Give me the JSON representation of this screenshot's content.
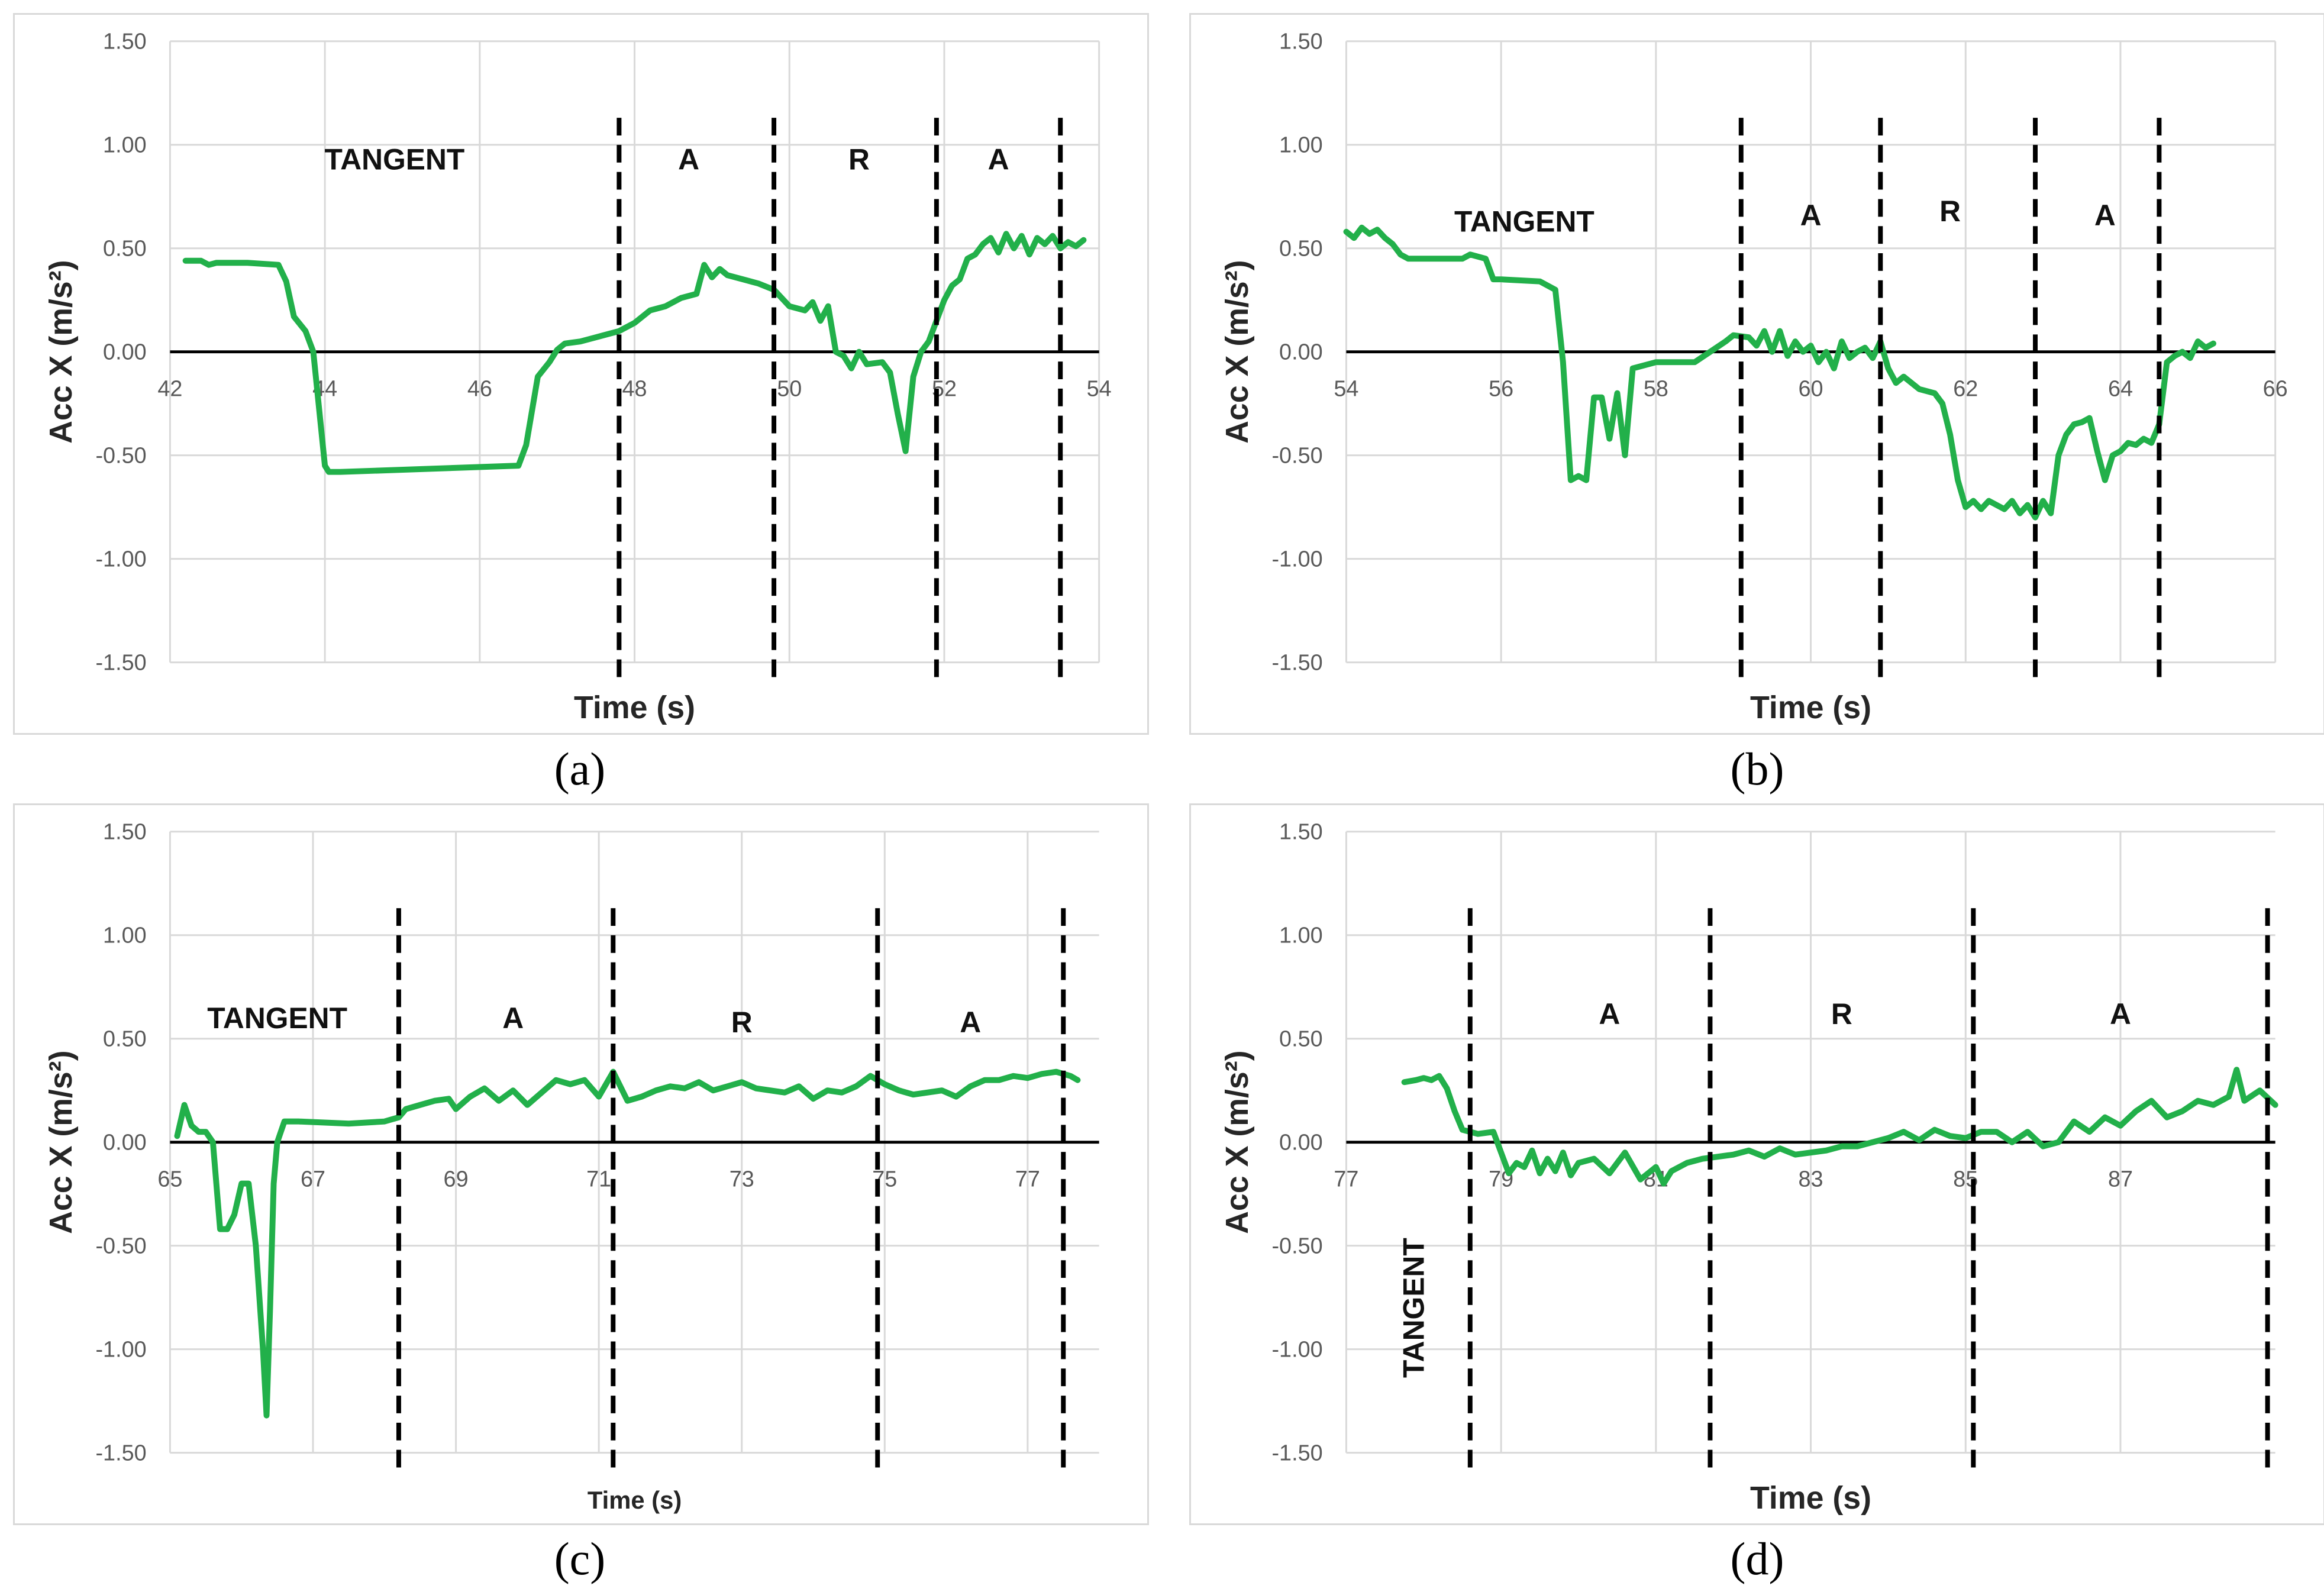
{
  "figure": {
    "captions": [
      "(a)",
      "(b)",
      "(c)",
      "(d)"
    ]
  },
  "chart_data": [
    {
      "id": "a",
      "type": "line",
      "caption": "(a)",
      "xlabel": "Time (s)",
      "ylabel": "Acc X (m/s²)",
      "xlim": [
        42,
        54
      ],
      "ylim": [
        -1.5,
        1.5
      ],
      "xticks": [
        42,
        44,
        46,
        48,
        50,
        52,
        54
      ],
      "yticks": [
        -1.5,
        -1.0,
        -0.5,
        0.0,
        0.5,
        1.0,
        1.5
      ],
      "grid": true,
      "line_color": "#22b04a",
      "series": [
        {
          "name": "Acc X",
          "x": [
            42.2,
            42.4,
            42.5,
            42.6,
            43.0,
            43.4,
            43.5,
            43.6,
            43.75,
            43.85,
            44.0,
            44.05,
            44.2,
            46.5,
            46.6,
            46.75,
            46.9,
            47.0,
            47.1,
            47.3,
            47.5,
            47.8,
            48.0,
            48.2,
            48.4,
            48.6,
            48.8,
            48.9,
            49.0,
            49.1,
            49.2,
            49.4,
            49.6,
            49.8,
            50.0,
            50.2,
            50.3,
            50.4,
            50.5,
            50.6,
            50.7,
            50.8,
            50.9,
            51.0,
            51.2,
            51.3,
            51.4,
            51.5,
            51.6,
            51.7,
            51.8,
            51.9,
            52.0,
            52.1,
            52.2,
            52.3,
            52.4,
            52.5,
            52.6,
            52.7,
            52.8,
            52.9,
            53.0,
            53.1,
            53.2,
            53.3,
            53.4,
            53.5,
            53.6,
            53.7,
            53.8
          ],
          "y": [
            0.44,
            0.44,
            0.42,
            0.43,
            0.43,
            0.42,
            0.34,
            0.17,
            0.1,
            0.0,
            -0.55,
            -0.58,
            -0.58,
            -0.55,
            -0.45,
            -0.12,
            -0.05,
            0.01,
            0.04,
            0.05,
            0.07,
            0.1,
            0.14,
            0.2,
            0.22,
            0.26,
            0.28,
            0.42,
            0.36,
            0.4,
            0.37,
            0.35,
            0.33,
            0.3,
            0.22,
            0.2,
            0.24,
            0.15,
            0.22,
            0.0,
            -0.02,
            -0.08,
            0.0,
            -0.06,
            -0.05,
            -0.1,
            -0.3,
            -0.48,
            -0.12,
            0.0,
            0.05,
            0.15,
            0.25,
            0.32,
            0.35,
            0.45,
            0.47,
            0.52,
            0.55,
            0.48,
            0.57,
            0.5,
            0.56,
            0.47,
            0.55,
            0.52,
            0.56,
            0.5,
            0.53,
            0.51,
            0.54
          ]
        }
      ],
      "dividers": [
        47.8,
        49.8,
        51.9,
        53.5
      ],
      "annotations": [
        {
          "text": "TANGENT",
          "x": 44.9,
          "y": 0.88
        },
        {
          "text": "A",
          "x": 48.7,
          "y": 0.88
        },
        {
          "text": "R",
          "x": 50.9,
          "y": 0.88
        },
        {
          "text": "A",
          "x": 52.7,
          "y": 0.88
        }
      ]
    },
    {
      "id": "b",
      "type": "line",
      "caption": "(b)",
      "xlabel": "Time (s)",
      "ylabel": "Acc X (m/s²)",
      "xlim": [
        54,
        66
      ],
      "ylim": [
        -1.5,
        1.5
      ],
      "xticks": [
        54,
        56,
        58,
        60,
        62,
        64,
        66
      ],
      "yticks": [
        -1.5,
        -1.0,
        -0.5,
        0.0,
        0.5,
        1.0,
        1.5
      ],
      "grid": true,
      "line_color": "#22b04a",
      "series": [
        {
          "name": "Acc X",
          "x": [
            54.0,
            54.1,
            54.2,
            54.3,
            54.4,
            54.5,
            54.6,
            54.7,
            54.8,
            54.9,
            55.0,
            55.5,
            55.6,
            55.8,
            55.9,
            56.0,
            56.5,
            56.7,
            56.8,
            56.9,
            57.0,
            57.1,
            57.2,
            57.3,
            57.4,
            57.5,
            57.6,
            57.7,
            58.0,
            58.5,
            58.7,
            58.9,
            59.0,
            59.2,
            59.3,
            59.4,
            59.5,
            59.6,
            59.7,
            59.8,
            59.9,
            60.0,
            60.1,
            60.2,
            60.3,
            60.4,
            60.5,
            60.6,
            60.7,
            60.8,
            60.9,
            61.0,
            61.1,
            61.2,
            61.4,
            61.6,
            61.7,
            61.8,
            61.9,
            62.0,
            62.1,
            62.2,
            62.3,
            62.4,
            62.5,
            62.6,
            62.7,
            62.8,
            62.9,
            63.0,
            63.1,
            63.2,
            63.3,
            63.4,
            63.5,
            63.6,
            63.7,
            63.8,
            63.9,
            64.0,
            64.1,
            64.2,
            64.3,
            64.4,
            64.5,
            64.6,
            64.7,
            64.8,
            64.9,
            65.0,
            65.1,
            65.2
          ],
          "y": [
            0.58,
            0.55,
            0.6,
            0.57,
            0.59,
            0.55,
            0.52,
            0.47,
            0.45,
            0.45,
            0.45,
            0.45,
            0.47,
            0.45,
            0.35,
            0.35,
            0.34,
            0.3,
            -0.05,
            -0.62,
            -0.6,
            -0.62,
            -0.22,
            -0.22,
            -0.42,
            -0.2,
            -0.5,
            -0.08,
            -0.05,
            -0.05,
            0.0,
            0.05,
            0.08,
            0.07,
            0.03,
            0.1,
            0.0,
            0.1,
            -0.02,
            0.05,
            0.0,
            0.03,
            -0.05,
            0.0,
            -0.08,
            0.05,
            -0.03,
            0.0,
            0.02,
            -0.03,
            0.05,
            -0.08,
            -0.15,
            -0.12,
            -0.18,
            -0.2,
            -0.25,
            -0.4,
            -0.62,
            -0.75,
            -0.72,
            -0.76,
            -0.72,
            -0.74,
            -0.76,
            -0.72,
            -0.78,
            -0.74,
            -0.8,
            -0.72,
            -0.78,
            -0.5,
            -0.4,
            -0.35,
            -0.34,
            -0.32,
            -0.48,
            -0.62,
            -0.5,
            -0.48,
            -0.44,
            -0.45,
            -0.42,
            -0.44,
            -0.35,
            -0.05,
            -0.02,
            0.0,
            -0.03,
            0.05,
            0.02,
            0.04
          ]
        }
      ],
      "dividers": [
        59.1,
        60.9,
        62.9,
        64.5
      ],
      "annotations": [
        {
          "text": "TANGENT",
          "x": 56.3,
          "y": 0.58
        },
        {
          "text": "A",
          "x": 60.0,
          "y": 0.61
        },
        {
          "text": "R",
          "x": 61.8,
          "y": 0.63
        },
        {
          "text": "A",
          "x": 63.8,
          "y": 0.61
        }
      ]
    },
    {
      "id": "c",
      "type": "line",
      "caption": "(c)",
      "xlabel": "Time (s)",
      "ylabel": "Acc X (m/s²)",
      "xlim": [
        65,
        78
      ],
      "ylim": [
        -1.5,
        1.5
      ],
      "xticks": [
        65,
        67,
        69,
        71,
        73,
        75,
        77
      ],
      "yticks": [
        -1.5,
        -1.0,
        -0.5,
        0.0,
        0.5,
        1.0,
        1.5
      ],
      "grid": true,
      "line_color": "#22b04a",
      "series": [
        {
          "name": "Acc X",
          "x": [
            65.1,
            65.2,
            65.3,
            65.4,
            65.5,
            65.6,
            65.7,
            65.8,
            65.9,
            66.0,
            66.1,
            66.2,
            66.3,
            66.35,
            66.4,
            66.45,
            66.5,
            66.6,
            66.8,
            67.5,
            68.0,
            68.2,
            68.3,
            68.5,
            68.7,
            68.9,
            69.0,
            69.2,
            69.4,
            69.6,
            69.8,
            70.0,
            70.2,
            70.4,
            70.6,
            70.8,
            71.0,
            71.2,
            71.4,
            71.6,
            71.8,
            72.0,
            72.2,
            72.4,
            72.6,
            72.8,
            73.0,
            73.2,
            73.4,
            73.6,
            73.8,
            74.0,
            74.2,
            74.4,
            74.6,
            74.8,
            75.0,
            75.2,
            75.4,
            75.6,
            75.8,
            76.0,
            76.2,
            76.4,
            76.6,
            76.8,
            77.0,
            77.2,
            77.4,
            77.6,
            77.7
          ],
          "y": [
            0.03,
            0.18,
            0.08,
            0.05,
            0.05,
            0.0,
            -0.42,
            -0.42,
            -0.35,
            -0.2,
            -0.2,
            -0.5,
            -1.0,
            -1.32,
            -0.8,
            -0.2,
            0.0,
            0.1,
            0.1,
            0.09,
            0.1,
            0.12,
            0.16,
            0.18,
            0.2,
            0.21,
            0.16,
            0.22,
            0.26,
            0.2,
            0.25,
            0.18,
            0.24,
            0.3,
            0.28,
            0.3,
            0.22,
            0.34,
            0.2,
            0.22,
            0.25,
            0.27,
            0.26,
            0.29,
            0.25,
            0.27,
            0.29,
            0.26,
            0.25,
            0.24,
            0.27,
            0.21,
            0.25,
            0.24,
            0.27,
            0.32,
            0.28,
            0.25,
            0.23,
            0.24,
            0.25,
            0.22,
            0.27,
            0.3,
            0.3,
            0.32,
            0.31,
            0.33,
            0.34,
            0.32,
            0.3
          ]
        }
      ],
      "dividers": [
        68.2,
        71.2,
        74.9,
        77.5
      ],
      "annotations": [
        {
          "text": "TANGENT",
          "x": 66.5,
          "y": 0.55
        },
        {
          "text": "A",
          "x": 69.8,
          "y": 0.55
        },
        {
          "text": "R",
          "x": 73.0,
          "y": 0.53
        },
        {
          "text": "A",
          "x": 76.2,
          "y": 0.53
        }
      ]
    },
    {
      "id": "d",
      "type": "line",
      "caption": "(d)",
      "xlabel": "Time (s)",
      "ylabel": "Acc X (m/s²)",
      "xlim": [
        77,
        89
      ],
      "ylim": [
        -1.5,
        1.5
      ],
      "xticks": [
        77,
        79,
        81,
        83,
        85,
        87
      ],
      "yticks": [
        -1.5,
        -1.0,
        -0.5,
        0.0,
        0.5,
        1.0,
        1.5
      ],
      "grid": true,
      "line_color": "#22b04a",
      "series": [
        {
          "name": "Acc X",
          "x": [
            77.75,
            77.9,
            78.0,
            78.1,
            78.2,
            78.3,
            78.4,
            78.5,
            78.7,
            78.9,
            79.0,
            79.1,
            79.2,
            79.3,
            79.4,
            79.5,
            79.6,
            79.7,
            79.8,
            79.9,
            80.0,
            80.2,
            80.4,
            80.6,
            80.8,
            81.0,
            81.1,
            81.2,
            81.4,
            81.6,
            81.8,
            82.0,
            82.2,
            82.4,
            82.6,
            82.8,
            83.0,
            83.2,
            83.4,
            83.6,
            83.8,
            84.0,
            84.2,
            84.4,
            84.6,
            84.8,
            85.0,
            85.2,
            85.4,
            85.6,
            85.8,
            86.0,
            86.2,
            86.4,
            86.6,
            86.8,
            87.0,
            87.2,
            87.4,
            87.6,
            87.8,
            88.0,
            88.2,
            88.4,
            88.5,
            88.6,
            88.8,
            89.0
          ],
          "y": [
            0.29,
            0.3,
            0.31,
            0.3,
            0.32,
            0.26,
            0.15,
            0.06,
            0.04,
            0.05,
            -0.05,
            -0.15,
            -0.1,
            -0.12,
            -0.04,
            -0.15,
            -0.08,
            -0.14,
            -0.05,
            -0.16,
            -0.1,
            -0.08,
            -0.15,
            -0.05,
            -0.18,
            -0.12,
            -0.2,
            -0.14,
            -0.1,
            -0.08,
            -0.07,
            -0.06,
            -0.04,
            -0.07,
            -0.03,
            -0.06,
            -0.05,
            -0.04,
            -0.02,
            -0.02,
            0.0,
            0.02,
            0.05,
            0.01,
            0.06,
            0.03,
            0.02,
            0.05,
            0.05,
            0.0,
            0.05,
            -0.02,
            0.0,
            0.1,
            0.05,
            0.12,
            0.08,
            0.15,
            0.2,
            0.12,
            0.15,
            0.2,
            0.18,
            0.22,
            0.35,
            0.2,
            0.25,
            0.18
          ]
        }
      ],
      "dividers": [
        78.6,
        81.7,
        85.1,
        88.9
      ],
      "annotations": [
        {
          "text": "TANGENT",
          "x": 78.0,
          "y": -0.8,
          "rotated": true
        },
        {
          "text": "A",
          "x": 80.4,
          "y": 0.57
        },
        {
          "text": "R",
          "x": 83.4,
          "y": 0.57
        },
        {
          "text": "A",
          "x": 87.0,
          "y": 0.57
        }
      ]
    }
  ]
}
